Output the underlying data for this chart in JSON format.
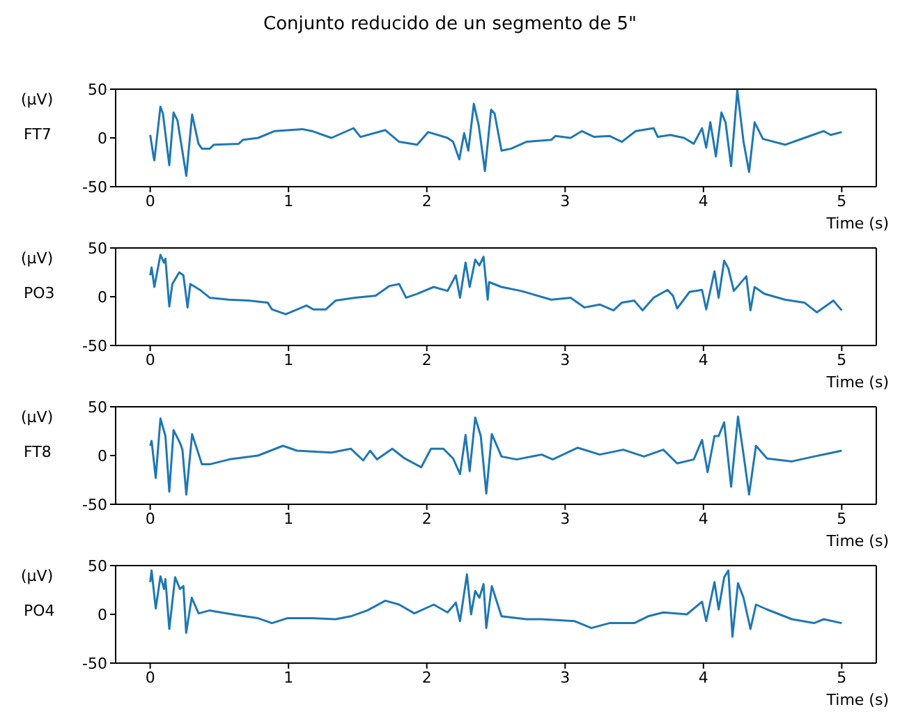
{
  "chart_data": [
    {
      "type": "line",
      "title": "Conjunto reducido de un segmento de 5\"",
      "xlabel": "Time (s)",
      "ylabel": "(µV)",
      "xlim": [
        -0.25,
        5.25
      ],
      "xticks": [
        0,
        1,
        2,
        3,
        4,
        5
      ],
      "ylim": [
        -50,
        50
      ],
      "yticks": [
        -50,
        0,
        50
      ],
      "x": [
        0,
        0.025,
        0.03,
        0.074,
        0.092,
        0.138,
        0.169,
        0.197,
        0.261,
        0.303,
        0.349,
        0.374,
        0.43,
        0.46,
        0.64,
        0.67,
        0.78,
        0.9,
        1.1,
        1.17,
        1.31,
        1.47,
        1.52,
        1.7,
        1.8,
        1.93,
        2.01,
        2.15,
        2.19,
        2.235,
        2.27,
        2.3,
        2.34,
        2.375,
        2.42,
        2.465,
        2.49,
        2.54,
        2.61,
        2.72,
        2.9,
        2.93,
        3.04,
        3.12,
        3.21,
        3.32,
        3.41,
        3.51,
        3.64,
        3.67,
        3.76,
        3.86,
        3.93,
        3.99,
        4.02,
        4.05,
        4.09,
        4.13,
        4.16,
        4.2,
        4.245,
        4.29,
        4.33,
        4.37,
        4.43,
        4.59,
        4.73,
        4.87,
        4.92,
        5
      ],
      "series": [
        {
          "name": "FT7",
          "color": "#1f77b4",
          "values": [
            3,
            -20,
            -23,
            32,
            25,
            -28,
            26,
            18,
            -39,
            24,
            -6,
            -11,
            -11,
            -7,
            -6,
            -2,
            0,
            7,
            9,
            7,
            0,
            10,
            1,
            8,
            -4,
            -7,
            6,
            0,
            -4,
            -22,
            5,
            -13,
            35,
            13,
            -34,
            29,
            25,
            -13,
            -11,
            -4,
            -2,
            2,
            0,
            7,
            1,
            2,
            -4,
            7,
            10,
            1,
            3,
            0,
            -6,
            10,
            -10,
            16,
            -19,
            26,
            16,
            -29,
            49,
            -4,
            -35,
            16,
            -1,
            -7,
            0,
            7,
            3,
            6
          ]
        }
      ]
    },
    {
      "type": "line",
      "xlabel": "Time (s)",
      "ylabel": "(µV)",
      "xlim": [
        -0.25,
        5.25
      ],
      "xticks": [
        0,
        1,
        2,
        3,
        4,
        5
      ],
      "ylim": [
        -50,
        50
      ],
      "yticks": [
        -50,
        0,
        50
      ],
      "x": [
        0,
        0.01,
        0.03,
        0.074,
        0.1,
        0.11,
        0.138,
        0.16,
        0.21,
        0.24,
        0.27,
        0.29,
        0.36,
        0.43,
        0.57,
        0.71,
        0.85,
        0.88,
        0.98,
        1.13,
        1.18,
        1.27,
        1.34,
        1.48,
        1.63,
        1.73,
        1.8,
        1.85,
        1.93,
        2.05,
        2.15,
        2.21,
        2.24,
        2.28,
        2.31,
        2.35,
        2.38,
        2.41,
        2.44,
        2.45,
        2.54,
        2.68,
        2.9,
        3.04,
        3.14,
        3.25,
        3.35,
        3.41,
        3.5,
        3.56,
        3.64,
        3.74,
        3.78,
        3.81,
        3.9,
        3.99,
        4.02,
        4.08,
        4.11,
        4.15,
        4.18,
        4.22,
        4.31,
        4.34,
        4.37,
        4.44,
        4.59,
        4.73,
        4.82,
        4.94,
        5
      ],
      "series": [
        {
          "name": "PO3",
          "color": "#1f77b4",
          "values": [
            22,
            30,
            10,
            43,
            35,
            39,
            -10,
            13,
            25,
            22,
            -11,
            13,
            7,
            -1,
            -3,
            -4,
            -6,
            -13,
            -18,
            -9,
            -13,
            -13,
            -4,
            -1,
            1,
            11,
            13,
            -1,
            3,
            10,
            6,
            22,
            -1,
            35,
            10,
            38,
            32,
            41,
            -3,
            15,
            10,
            6,
            -3,
            -1,
            -11,
            -8,
            -14,
            -6,
            -4,
            -14,
            -1,
            7,
            1,
            -12,
            5,
            7,
            -13,
            26,
            -1,
            37,
            29,
            6,
            21,
            -14,
            10,
            3,
            -3,
            -6,
            -16,
            -4,
            -14
          ]
        }
      ]
    },
    {
      "type": "line",
      "xlabel": "Time (s)",
      "ylabel": "(µV)",
      "xlim": [
        -0.25,
        5.25
      ],
      "xticks": [
        0,
        1,
        2,
        3,
        4,
        5
      ],
      "ylim": [
        -50,
        50
      ],
      "yticks": [
        -50,
        0,
        50
      ],
      "x": [
        0,
        0.01,
        0.04,
        0.074,
        0.11,
        0.138,
        0.169,
        0.215,
        0.233,
        0.261,
        0.303,
        0.374,
        0.43,
        0.57,
        0.78,
        0.96,
        1.06,
        1.31,
        1.45,
        1.54,
        1.59,
        1.64,
        1.75,
        1.84,
        1.96,
        2.03,
        2.12,
        2.19,
        2.24,
        2.28,
        2.31,
        2.35,
        2.39,
        2.43,
        2.47,
        2.54,
        2.65,
        2.83,
        2.91,
        3.09,
        3.25,
        3.42,
        3.57,
        3.71,
        3.81,
        3.93,
        3.99,
        4.03,
        4.08,
        4.11,
        4.15,
        4.2,
        4.25,
        4.29,
        4.33,
        4.38,
        4.46,
        4.64,
        4.8,
        4.9,
        5
      ],
      "series": [
        {
          "name": "FT8",
          "color": "#1f77b4",
          "values": [
            10,
            15,
            -23,
            38,
            20,
            -37,
            26,
            13,
            6,
            -40,
            22,
            -9,
            -9,
            -4,
            0,
            10,
            5,
            3,
            7,
            -5,
            5,
            -4,
            7,
            -3,
            -12,
            7,
            7,
            -3,
            -19,
            21,
            -16,
            39,
            20,
            -39,
            22,
            -1,
            -4,
            1,
            -4,
            8,
            1,
            6,
            -1,
            6,
            -8,
            -4,
            16,
            -17,
            20,
            20,
            34,
            -32,
            40,
            1,
            -40,
            10,
            -3,
            -6,
            -1,
            2,
            5
          ]
        }
      ]
    },
    {
      "type": "line",
      "xlabel": "Time (s)",
      "ylabel": "(µV)",
      "xlim": [
        -0.25,
        5.25
      ],
      "xticks": [
        0,
        1,
        2,
        3,
        4,
        5
      ],
      "ylim": [
        -50,
        50
      ],
      "yticks": [
        -50,
        0,
        50
      ],
      "x": [
        0,
        0.01,
        0.04,
        0.074,
        0.1,
        0.11,
        0.138,
        0.18,
        0.215,
        0.24,
        0.26,
        0.3,
        0.35,
        0.43,
        0.64,
        0.78,
        0.88,
        0.99,
        1.17,
        1.34,
        1.45,
        1.57,
        1.7,
        1.8,
        1.91,
        2.05,
        2.15,
        2.21,
        2.24,
        2.29,
        2.32,
        2.35,
        2.38,
        2.41,
        2.43,
        2.47,
        2.54,
        2.72,
        2.83,
        3.07,
        3.19,
        3.32,
        3.5,
        3.6,
        3.71,
        3.88,
        3.99,
        4.02,
        4.08,
        4.11,
        4.15,
        4.18,
        4.21,
        4.25,
        4.29,
        4.34,
        4.38,
        4.46,
        4.64,
        4.8,
        4.87,
        5
      ],
      "series": [
        {
          "name": "PO4",
          "color": "#1f77b4",
          "values": [
            33,
            45,
            6,
            39,
            26,
            36,
            -15,
            38,
            26,
            29,
            -19,
            17,
            1,
            4,
            -1,
            -4,
            -9,
            -4,
            -4,
            -5,
            -2,
            4,
            14,
            10,
            1,
            10,
            2,
            12,
            -7,
            41,
            0,
            24,
            17,
            31,
            -14,
            29,
            -2,
            -5,
            -5,
            -7,
            -14,
            -9,
            -9,
            -2,
            2,
            0,
            13,
            -7,
            33,
            5,
            38,
            45,
            -23,
            32,
            17,
            -15,
            10,
            5,
            -5,
            -9,
            -5,
            -9
          ]
        }
      ]
    }
  ]
}
